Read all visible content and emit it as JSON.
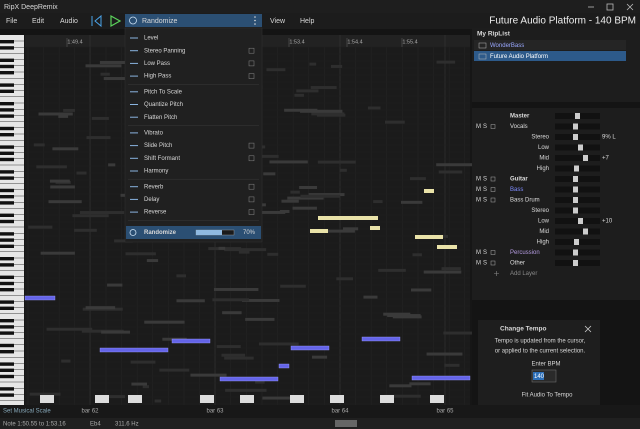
{
  "window": {
    "title": "RipX DeepRemix"
  },
  "menu": [
    "File",
    "Edit",
    "Audio",
    "View",
    "Help"
  ],
  "toolbar": {
    "selected_effect": "Randomize"
  },
  "project_title": "Future Audio Platform - 140 BPM",
  "timeline": [
    "1:49.4",
    "1:53.4",
    "1:54.4",
    "1:55.4"
  ],
  "effects_menu": {
    "groups": [
      [
        "Level",
        "Stereo Panning",
        "Low Pass",
        "High Pass"
      ],
      [
        "Pitch To Scale",
        "Quantize Pitch",
        "Flatten Pitch"
      ],
      [
        "Vibrato",
        "Slide Pitch",
        "Shift Formant",
        "Harmony"
      ],
      [
        "Reverb",
        "Delay",
        "Reverse"
      ]
    ],
    "randomize": {
      "label": "Randomize",
      "amount": "70%"
    }
  },
  "riplist": {
    "title": "My RipList",
    "items": [
      "WonderBass",
      "Future Audio Platform"
    ]
  },
  "mixer": {
    "mute": "M",
    "solo": "S",
    "master": "Master",
    "tracks": [
      {
        "name": "Vocals",
        "params": [
          {
            "name": "Stereo",
            "value": "9% L"
          },
          {
            "name": "Low"
          },
          {
            "name": "Mid",
            "value": "+7"
          },
          {
            "name": "High"
          }
        ]
      },
      {
        "name": "Guitar"
      },
      {
        "name": "Bass"
      },
      {
        "name": "Bass Drum",
        "params": [
          {
            "name": "Stereo"
          },
          {
            "name": "Low",
            "value": "+10"
          },
          {
            "name": "Mid"
          },
          {
            "name": "High"
          }
        ]
      },
      {
        "name": "Percussion"
      },
      {
        "name": "Other"
      }
    ],
    "add_layer": "Add Layer"
  },
  "tempo_dialog": {
    "title": "Change Tempo",
    "description": [
      "Tempo is updated from the cursor,",
      "or applied to the current selection."
    ],
    "input_label": "Enter BPM",
    "input_value": "140",
    "button": "Fit Audio To Tempo"
  },
  "footer": {
    "scale_button": "Set Musical Scale",
    "bars": [
      "bar 62",
      "bar 63",
      "bar 64",
      "bar 65"
    ],
    "note_range": "Note 1:50.55 to 1:53.16",
    "pitch": "Eb4",
    "frequency": "311.6 Hz"
  }
}
